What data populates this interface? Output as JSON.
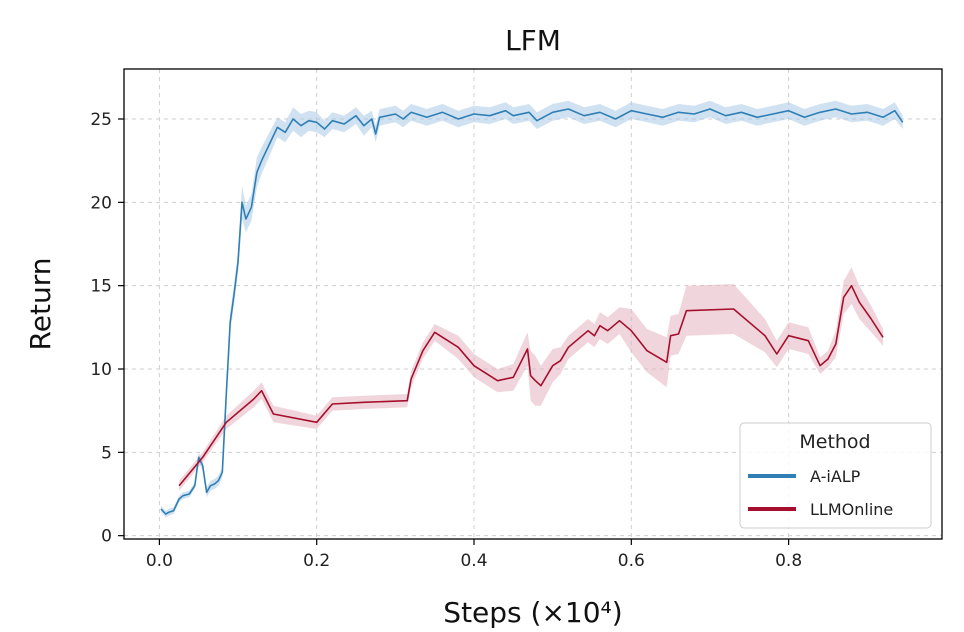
{
  "chart_data": {
    "type": "line",
    "title": "LFM",
    "xlabel": "Steps (×10⁴)",
    "ylabel": "Return",
    "xlim": [
      -0.045,
      0.995
    ],
    "ylim": [
      -0.2,
      28
    ],
    "xticks": [
      0.0,
      0.2,
      0.4,
      0.6,
      0.8
    ],
    "xtick_labels": [
      "0.0",
      "0.2",
      "0.4",
      "0.6",
      "0.8"
    ],
    "yticks": [
      0,
      5,
      10,
      15,
      20,
      25
    ],
    "ytick_labels": [
      "0",
      "5",
      "10",
      "15",
      "20",
      "25"
    ],
    "grid": true,
    "legend": {
      "title": "Method",
      "position": "bottom-right"
    },
    "series": [
      {
        "name": "A-iALP",
        "color": "#2f7fb5",
        "band_color": "#a9cbe6",
        "x": [
          0.002,
          0.008,
          0.012,
          0.018,
          0.025,
          0.03,
          0.038,
          0.045,
          0.05,
          0.055,
          0.06,
          0.065,
          0.07,
          0.075,
          0.08,
          0.085,
          0.09,
          0.095,
          0.1,
          0.105,
          0.11,
          0.117,
          0.124,
          0.13,
          0.14,
          0.15,
          0.16,
          0.17,
          0.18,
          0.19,
          0.2,
          0.21,
          0.22,
          0.235,
          0.25,
          0.26,
          0.27,
          0.275,
          0.28,
          0.3,
          0.31,
          0.32,
          0.34,
          0.36,
          0.38,
          0.4,
          0.42,
          0.44,
          0.45,
          0.47,
          0.48,
          0.5,
          0.52,
          0.54,
          0.56,
          0.58,
          0.6,
          0.62,
          0.64,
          0.66,
          0.68,
          0.7,
          0.72,
          0.74,
          0.76,
          0.78,
          0.8,
          0.82,
          0.84,
          0.86,
          0.88,
          0.9,
          0.92,
          0.935,
          0.945
        ],
        "y": [
          1.6,
          1.3,
          1.4,
          1.5,
          2.2,
          2.4,
          2.5,
          3.0,
          4.7,
          4.2,
          2.6,
          3.0,
          3.1,
          3.3,
          3.8,
          8.5,
          12.8,
          14.5,
          16.4,
          20.0,
          19.0,
          19.7,
          21.8,
          22.5,
          23.5,
          24.5,
          24.2,
          25.0,
          24.6,
          24.9,
          24.8,
          24.4,
          24.9,
          24.7,
          25.2,
          24.6,
          25.0,
          24.1,
          25.1,
          25.3,
          25.0,
          25.4,
          25.1,
          25.4,
          25.0,
          25.3,
          25.2,
          25.5,
          25.2,
          25.4,
          24.9,
          25.4,
          25.6,
          25.2,
          25.4,
          25.0,
          25.5,
          25.3,
          25.1,
          25.4,
          25.3,
          25.6,
          25.2,
          25.4,
          25.1,
          25.3,
          25.5,
          25.1,
          25.4,
          25.6,
          25.3,
          25.4,
          25.1,
          25.5,
          24.8
        ],
        "band": [
          0.2,
          0.2,
          0.2,
          0.2,
          0.2,
          0.2,
          0.2,
          0.2,
          0.3,
          0.3,
          0.3,
          0.3,
          0.3,
          0.3,
          0.3,
          0.5,
          0.6,
          0.6,
          0.6,
          1.0,
          0.8,
          0.8,
          0.9,
          0.8,
          0.7,
          0.6,
          0.6,
          0.7,
          0.7,
          0.6,
          0.6,
          0.5,
          0.5,
          0.5,
          0.5,
          0.6,
          0.5,
          0.5,
          0.5,
          0.5,
          0.5,
          0.5,
          0.5,
          0.5,
          0.5,
          0.5,
          0.5,
          0.5,
          0.5,
          0.5,
          0.5,
          0.5,
          0.5,
          0.5,
          0.5,
          0.5,
          0.5,
          0.5,
          0.5,
          0.5,
          0.5,
          0.5,
          0.5,
          0.5,
          0.5,
          0.5,
          0.5,
          0.5,
          0.5,
          0.5,
          0.5,
          0.5,
          0.5,
          0.5,
          0.4
        ]
      },
      {
        "name": "LLMOnline",
        "color": "#a50f2d",
        "band_color": "#e3b4bf",
        "x": [
          0.025,
          0.055,
          0.085,
          0.12,
          0.13,
          0.145,
          0.2,
          0.22,
          0.26,
          0.315,
          0.32,
          0.335,
          0.35,
          0.38,
          0.4,
          0.43,
          0.45,
          0.468,
          0.472,
          0.478,
          0.485,
          0.5,
          0.51,
          0.52,
          0.545,
          0.553,
          0.56,
          0.57,
          0.585,
          0.6,
          0.62,
          0.645,
          0.65,
          0.66,
          0.67,
          0.73,
          0.77,
          0.785,
          0.8,
          0.825,
          0.84,
          0.85,
          0.86,
          0.87,
          0.88,
          0.89,
          0.905,
          0.92
        ],
        "y": [
          3.0,
          4.7,
          6.8,
          8.2,
          8.7,
          7.3,
          6.8,
          7.9,
          8.0,
          8.1,
          9.4,
          11.1,
          12.2,
          11.3,
          10.2,
          9.3,
          9.5,
          11.2,
          9.6,
          9.3,
          9.0,
          10.2,
          10.5,
          11.3,
          12.3,
          12.0,
          12.6,
          12.3,
          12.9,
          12.3,
          11.1,
          10.4,
          12.0,
          12.1,
          13.5,
          13.6,
          12.0,
          10.9,
          12.0,
          11.7,
          10.2,
          10.6,
          11.5,
          14.3,
          15.0,
          14.0,
          13.0,
          11.9
        ],
        "band": [
          0.3,
          0.3,
          0.4,
          0.5,
          0.5,
          0.5,
          0.4,
          0.4,
          0.4,
          0.4,
          0.5,
          0.5,
          0.5,
          0.7,
          0.7,
          0.7,
          0.8,
          1.0,
          1.5,
          1.5,
          1.2,
          1.0,
          0.8,
          0.7,
          0.7,
          0.7,
          0.8,
          0.8,
          0.8,
          1.3,
          1.3,
          1.5,
          1.2,
          1.2,
          1.5,
          1.5,
          1.0,
          0.8,
          0.8,
          0.8,
          0.5,
          0.5,
          0.8,
          1.0,
          1.1,
          1.0,
          0.8,
          0.5
        ]
      }
    ]
  }
}
